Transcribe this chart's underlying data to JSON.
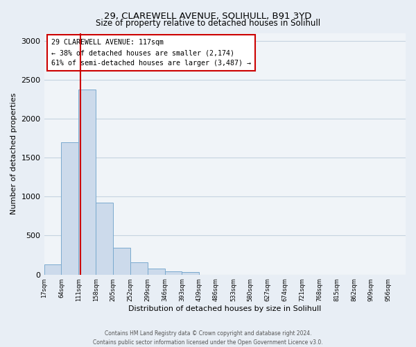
{
  "title": "29, CLAREWELL AVENUE, SOLIHULL, B91 3YD",
  "subtitle": "Size of property relative to detached houses in Solihull",
  "xlabel": "Distribution of detached houses by size in Solihull",
  "ylabel": "Number of detached properties",
  "bin_labels": [
    "17sqm",
    "64sqm",
    "111sqm",
    "158sqm",
    "205sqm",
    "252sqm",
    "299sqm",
    "346sqm",
    "393sqm",
    "439sqm",
    "486sqm",
    "533sqm",
    "580sqm",
    "627sqm",
    "674sqm",
    "721sqm",
    "768sqm",
    "815sqm",
    "862sqm",
    "909sqm",
    "956sqm"
  ],
  "bin_edges": [
    17,
    64,
    111,
    158,
    205,
    252,
    299,
    346,
    393,
    439,
    486,
    533,
    580,
    627,
    674,
    721,
    768,
    815,
    862,
    909,
    956
  ],
  "bar_heights": [
    130,
    1700,
    2370,
    920,
    340,
    155,
    75,
    40,
    30,
    0,
    0,
    0,
    0,
    0,
    0,
    0,
    0,
    0,
    0,
    0
  ],
  "bar_color": "#ccdaeb",
  "bar_edge_color": "#7aaace",
  "property_value": 117,
  "vline_color": "#cc0000",
  "annotation_text": "29 CLAREWELL AVENUE: 117sqm\n← 38% of detached houses are smaller (2,174)\n61% of semi-detached houses are larger (3,487) →",
  "annotation_box_color": "#ffffff",
  "annotation_box_edge_color": "#cc0000",
  "ylim": [
    0,
    3100
  ],
  "yticks": [
    0,
    500,
    1000,
    1500,
    2000,
    2500,
    3000
  ],
  "footer_text": "Contains HM Land Registry data © Crown copyright and database right 2024.\nContains public sector information licensed under the Open Government Licence v3.0.",
  "bg_color": "#e8eef5",
  "plot_bg_color": "#f0f4f8",
  "grid_color": "#c5d3e0"
}
